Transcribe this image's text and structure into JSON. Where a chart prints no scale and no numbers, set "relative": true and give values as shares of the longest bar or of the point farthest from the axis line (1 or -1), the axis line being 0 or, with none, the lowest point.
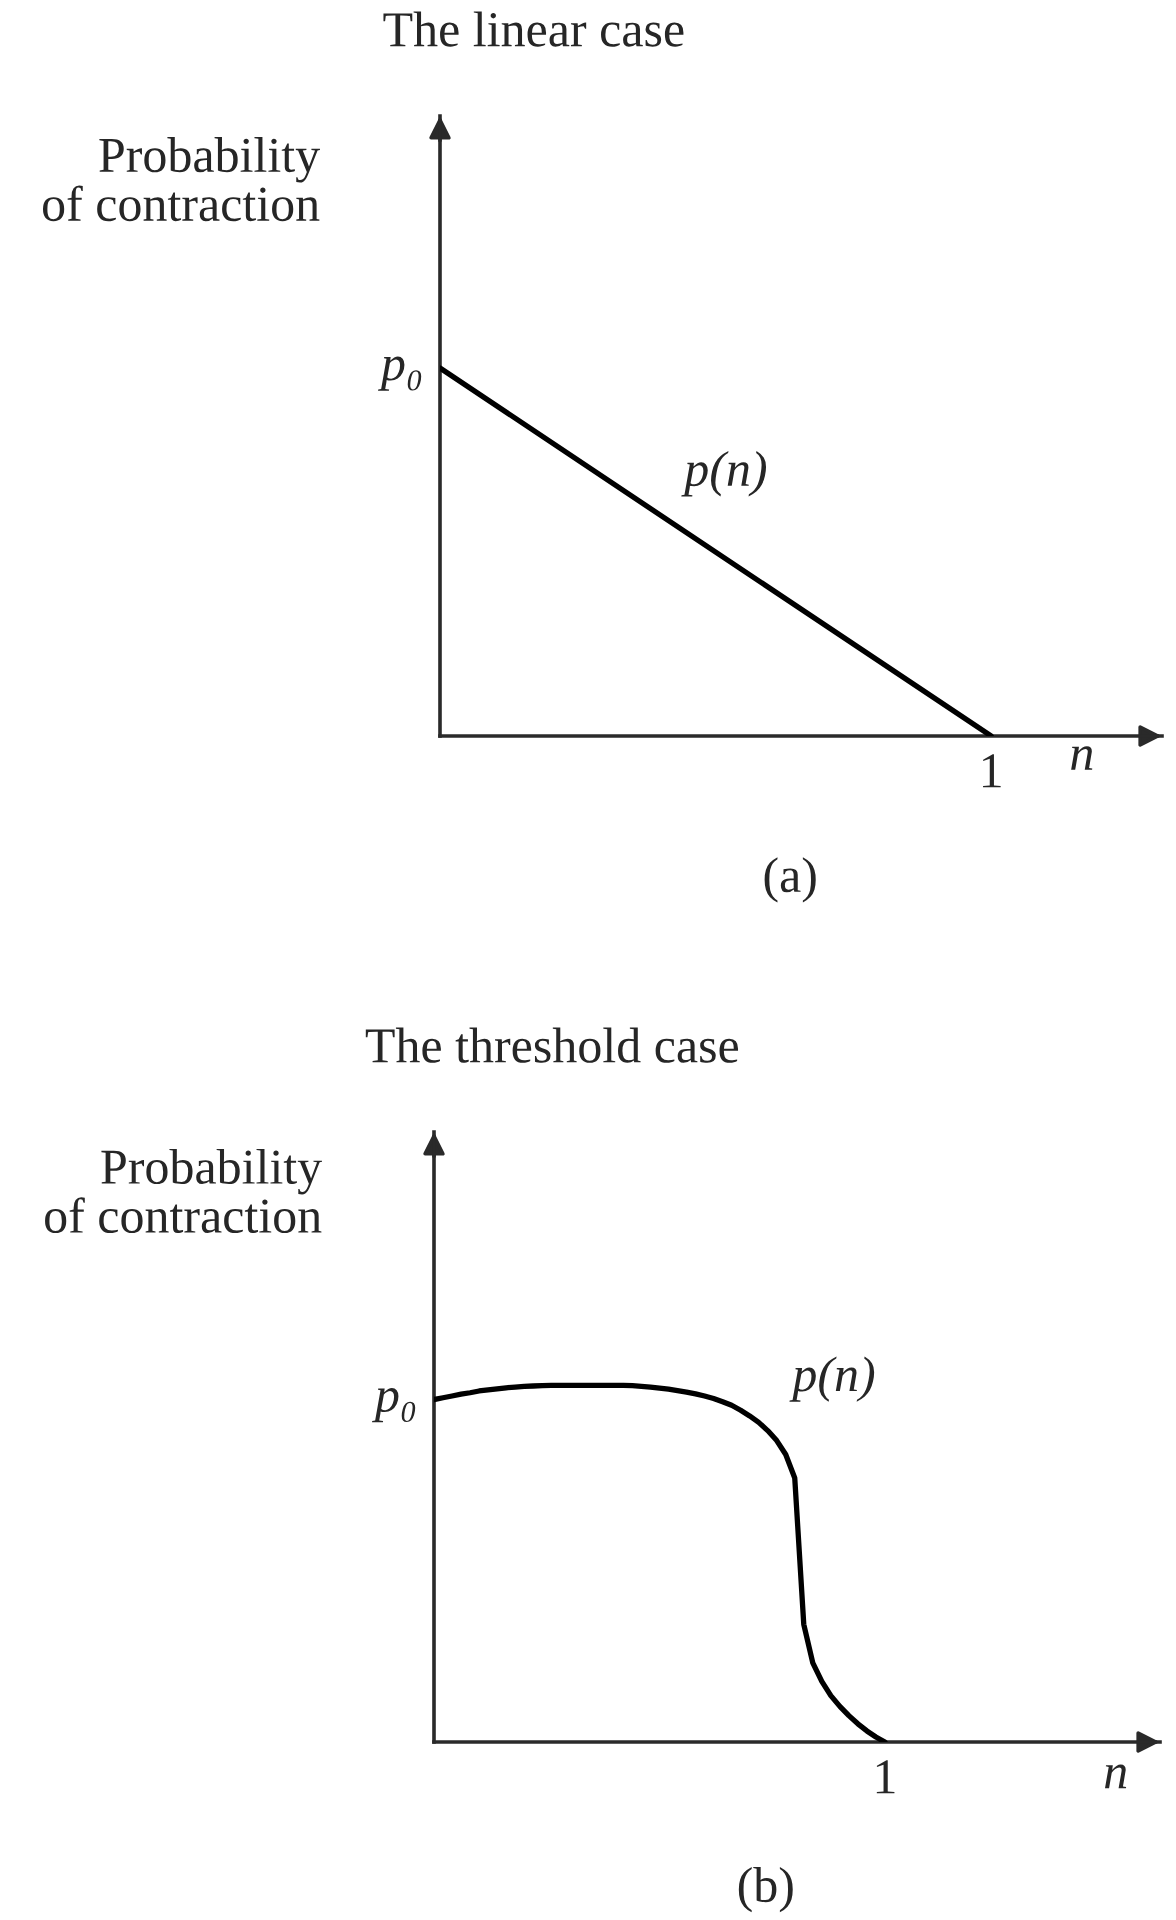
{
  "chart_data": [
    {
      "type": "line",
      "title": "The linear case",
      "ylabel": "Probability\nof contraction",
      "xlabel": "n",
      "relative": true,
      "categories": [
        null,
        null
      ],
      "series": [
        {
          "name": "p(n)",
          "color": "#000000",
          "values": [
            1,
            0
          ]
        }
      ],
      "annotations": [
        "p₀",
        "1",
        "(a)"
      ]
    },
    {
      "type": "line",
      "title": "The threshold case",
      "ylabel": "Probability\nof contraction",
      "xlabel": "n",
      "relative": true,
      "categories": [
        null,
        null,
        null,
        null,
        null,
        null,
        null,
        null,
        null,
        null,
        null,
        null,
        null,
        null,
        null,
        null,
        null,
        null,
        null,
        null,
        null,
        null,
        null,
        null,
        null,
        null,
        null,
        null,
        null,
        null,
        null,
        null,
        null,
        null,
        null,
        null,
        null,
        null,
        null,
        null,
        null,
        null,
        null,
        null,
        null,
        null,
        null,
        null,
        null,
        null,
        null
      ],
      "series": [
        {
          "name": "p(n)",
          "color": "#000000",
          "values": [
            0.96,
            0.965,
            0.97,
            0.975,
            0.979,
            0.984,
            0.987,
            0.99,
            0.993,
            0.995,
            0.997,
            0.998,
            0.999,
            1,
            1,
            1,
            1,
            1,
            1,
            1,
            1,
            1,
            0.999,
            0.997,
            0.995,
            0.992,
            0.989,
            0.985,
            0.981,
            0.976,
            0.97,
            0.963,
            0.954,
            0.944,
            0.93,
            0.914,
            0.896,
            0.873,
            0.845,
            0.806,
            0.74,
            0.33,
            0.222,
            0.17,
            0.13,
            0.1,
            0.074,
            0.051,
            0.031,
            0.014,
            0
          ]
        }
      ],
      "annotations": [
        "p₀",
        "1",
        "(b)"
      ]
    }
  ]
}
